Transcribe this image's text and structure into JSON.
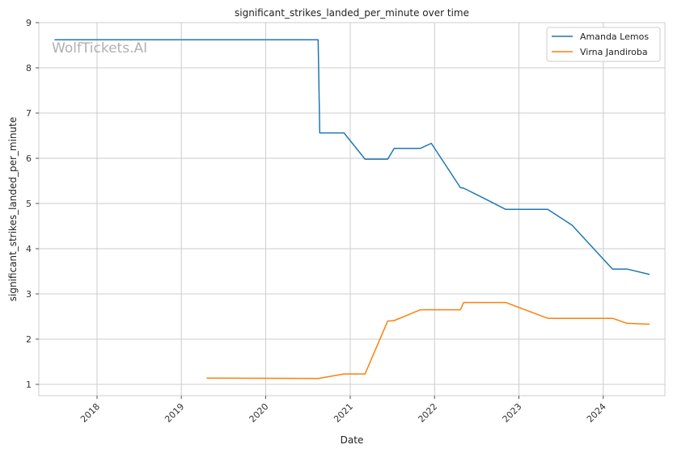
{
  "watermark": "WolfTickets.AI",
  "chart_data": {
    "type": "line",
    "title": "significant_strikes_landed_per_minute over time",
    "xlabel": "Date",
    "ylabel": "significant_strikes_landed_per_minute",
    "xlim": [
      "2017-04-24",
      "2024-09-24"
    ],
    "ylim": [
      0.75,
      9.0
    ],
    "xticks": [
      "2018",
      "2019",
      "2020",
      "2021",
      "2022",
      "2023",
      "2024"
    ],
    "yticks": [
      1,
      2,
      3,
      4,
      5,
      6,
      7,
      8,
      9
    ],
    "grid": true,
    "legend_position": "top-right",
    "series": [
      {
        "name": "Amanda Lemos",
        "color": "#1f77b4",
        "x": [
          "2017-07-01",
          "2020-08-15",
          "2020-08-22",
          "2020-12-05",
          "2021-03-06",
          "2021-06-12",
          "2021-07-10",
          "2021-11-01",
          "2021-12-18",
          "2022-04-23",
          "2022-05-07",
          "2022-08-01",
          "2022-11-05",
          "2023-05-06",
          "2023-08-19",
          "2024-02-10",
          "2024-04-13",
          "2024-07-20"
        ],
        "values": [
          8.62,
          8.62,
          6.56,
          6.56,
          5.98,
          5.98,
          6.22,
          6.22,
          6.33,
          5.35,
          5.34,
          5.12,
          4.87,
          4.87,
          4.52,
          3.55,
          3.55,
          3.43
        ]
      },
      {
        "name": "Virna Jandiroba",
        "color": "#ff7f0e",
        "x": [
          "2019-04-20",
          "2020-08-15",
          "2020-12-05",
          "2021-03-06",
          "2021-06-12",
          "2021-07-10",
          "2021-11-01",
          "2022-04-23",
          "2022-05-07",
          "2022-11-05",
          "2023-05-06",
          "2024-02-10",
          "2024-04-13",
          "2024-07-20"
        ],
        "values": [
          1.14,
          1.13,
          1.23,
          1.23,
          2.4,
          2.41,
          2.65,
          2.65,
          2.81,
          2.81,
          2.46,
          2.46,
          2.35,
          2.33
        ]
      }
    ]
  }
}
